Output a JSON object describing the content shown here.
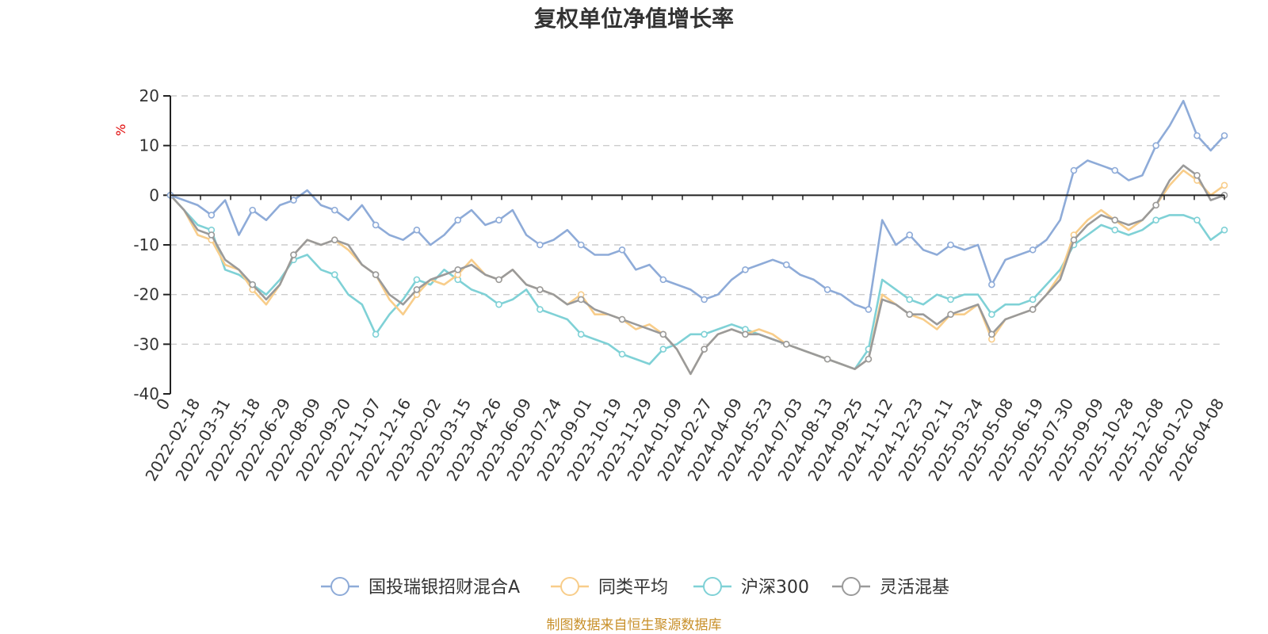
{
  "chart_data": {
    "type": "line",
    "title": "复权单位净值增长率",
    "ylabel": "%",
    "ylim": [
      -40,
      20
    ],
    "yticks": [
      "20",
      "10",
      "0",
      "-10",
      "-20",
      "-30",
      "-40"
    ],
    "yticks_values": [
      20,
      10,
      0,
      -10,
      -20,
      -30,
      -40
    ],
    "xticks": [
      "0",
      "2022-02-18",
      "2022-03-31",
      "2022-05-18",
      "2022-06-29",
      "2022-08-09",
      "2022-09-20",
      "2022-11-07",
      "2022-12-16",
      "2023-02-02",
      "2023-03-15",
      "2023-04-26",
      "2023-06-09",
      "2023-07-24",
      "2023-09-01",
      "2023-10-19",
      "2023-11-29",
      "2024-01-09",
      "2024-02-27",
      "2024-04-09",
      "2024-05-23",
      "2024-07-03",
      "2024-08-13",
      "2024-09-25",
      "2024-11-12",
      "2024-12-23",
      "2025-02-11",
      "2025-03-24",
      "2025-05-08",
      "2025-06-19",
      "2025-07-30",
      "2025-09-09",
      "2025-10-28",
      "2025-12-08",
      "2026-01-20",
      "2026-04-08"
    ],
    "grid": true,
    "legend_position": "bottom",
    "series": [
      {
        "name": "国投瑞银招财混合A",
        "color": "#8eabd8",
        "values": [
          0,
          -1,
          -2,
          -4,
          -1,
          -8,
          -3,
          -5,
          -2,
          -1,
          1,
          -2,
          -3,
          -5,
          -2,
          -6,
          -8,
          -9,
          -7,
          -10,
          -8,
          -5,
          -3,
          -6,
          -5,
          -3,
          -8,
          -10,
          -9,
          -7,
          -10,
          -12,
          -12,
          -11,
          -15,
          -14,
          -17,
          -18,
          -19,
          -21,
          -20,
          -17,
          -15,
          -14,
          -13,
          -14,
          -16,
          -17,
          -19,
          -20,
          -22,
          -23,
          -5,
          -10,
          -8,
          -11,
          -12,
          -10,
          -11,
          -10,
          -18,
          -13,
          -12,
          -11,
          -9,
          -5,
          5,
          7,
          6,
          5,
          3,
          4,
          10,
          14,
          19,
          12,
          9,
          12
        ]
      },
      {
        "name": "同类平均",
        "color": "#f8cd8a",
        "values": [
          0,
          -3,
          -8,
          -9,
          -14,
          -15,
          -19,
          -22,
          -18,
          -12,
          -9,
          -10,
          -9,
          -11,
          -14,
          -16,
          -21,
          -24,
          -20,
          -17,
          -18,
          -16,
          -13,
          -16,
          -17,
          -15,
          -18,
          -19,
          -20,
          -22,
          -20,
          -24,
          -24,
          -25,
          -27,
          -26,
          -28,
          -31,
          -36,
          -31,
          -28,
          -27,
          -28,
          -27,
          -28,
          -30,
          -31,
          -32,
          -33,
          -34,
          -35,
          -33,
          -20,
          -22,
          -24,
          -25,
          -27,
          -24,
          -24,
          -22,
          -29,
          -25,
          -24,
          -23,
          -20,
          -16,
          -8,
          -5,
          -3,
          -5,
          -7,
          -5,
          -2,
          2,
          5,
          3,
          0,
          2
        ]
      },
      {
        "name": "沪深300",
        "color": "#7fd1d6",
        "values": [
          0,
          -3,
          -6,
          -7,
          -15,
          -16,
          -18,
          -20,
          -17,
          -13,
          -12,
          -15,
          -16,
          -20,
          -22,
          -28,
          -24,
          -21,
          -17,
          -18,
          -15,
          -17,
          -19,
          -20,
          -22,
          -21,
          -19,
          -23,
          -24,
          -25,
          -28,
          -29,
          -30,
          -32,
          -33,
          -34,
          -31,
          -30,
          -28,
          -28,
          -27,
          -26,
          -27,
          -28,
          -29,
          -30,
          -31,
          -32,
          -33,
          -34,
          -35,
          -31,
          -17,
          -19,
          -21,
          -22,
          -20,
          -21,
          -20,
          -20,
          -24,
          -22,
          -22,
          -21,
          -18,
          -15,
          -10,
          -8,
          -6,
          -7,
          -8,
          -7,
          -5,
          -4,
          -4,
          -5,
          -9,
          -7
        ]
      },
      {
        "name": "灵活混基",
        "color": "#9a9a9a",
        "values": [
          0,
          -3,
          -7,
          -8,
          -13,
          -15,
          -18,
          -21,
          -18,
          -12,
          -9,
          -10,
          -9,
          -10,
          -14,
          -16,
          -20,
          -22,
          -19,
          -17,
          -16,
          -15,
          -14,
          -16,
          -17,
          -15,
          -18,
          -19,
          -20,
          -22,
          -21,
          -23,
          -24,
          -25,
          -26,
          -27,
          -28,
          -31,
          -36,
          -31,
          -28,
          -27,
          -28,
          -28,
          -29,
          -30,
          -31,
          -32,
          -33,
          -34,
          -35,
          -33,
          -21,
          -22,
          -24,
          -24,
          -26,
          -24,
          -23,
          -22,
          -28,
          -25,
          -24,
          -23,
          -20,
          -17,
          -9,
          -6,
          -4,
          -5,
          -6,
          -5,
          -2,
          3,
          6,
          4,
          -1,
          0
        ]
      }
    ]
  },
  "source_text": "制图数据来自恒生聚源数据库"
}
